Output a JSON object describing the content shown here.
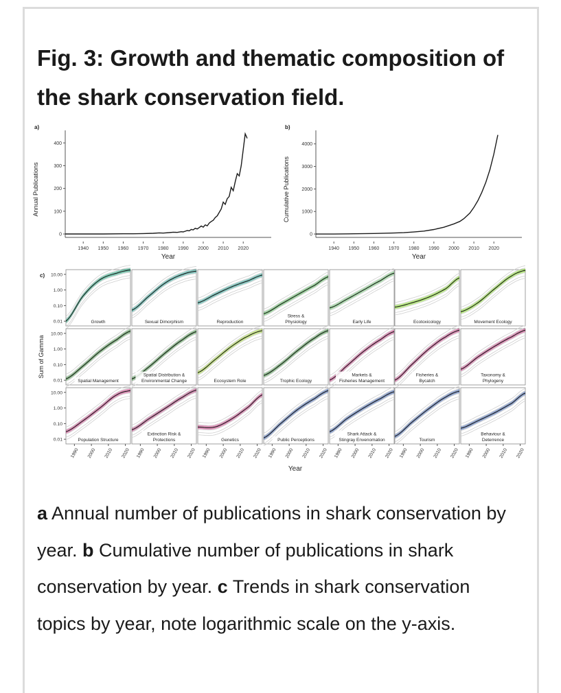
{
  "figure": {
    "title": "Fig. 3: Growth and thematic composition of the shark conservation field."
  },
  "caption": {
    "a_letter": "a",
    "a_text": " Annual number of publications in shark conservation by year. ",
    "b_letter": "b",
    "b_text": " Cumulative number of publications in shark conservation by year. ",
    "c_letter": "c",
    "c_text": " Trends in shark conservation topics by year, note logarithmic scale on the y-axis."
  },
  "chart_data": [
    {
      "type": "line",
      "panel_label": "a)",
      "xlabel": "Year",
      "ylabel": "Annual Publications",
      "xlim": [
        1931,
        2034
      ],
      "ylim": [
        -15,
        455
      ],
      "xticks": [
        1940,
        1950,
        1960,
        1970,
        1980,
        1990,
        2000,
        2010,
        2020
      ],
      "yticks": [
        0,
        100,
        200,
        300,
        400
      ],
      "grid": false,
      "color": "#1a1a1a",
      "series": [
        {
          "x": [
            1931,
            1940,
            1950,
            1960,
            1965,
            1970,
            1975,
            1978,
            1980,
            1983,
            1985,
            1987,
            1989,
            1990,
            1991,
            1992,
            1993,
            1994,
            1995,
            1996,
            1997,
            1998,
            1999,
            2000,
            2001,
            2002,
            2003,
            2004,
            2005,
            2006,
            2007,
            2008,
            2009,
            2010,
            2011,
            2012,
            2013,
            2014,
            2015,
            2016,
            2017,
            2018,
            2019,
            2020,
            2021,
            2022
          ],
          "y": [
            0,
            0,
            0,
            1,
            1,
            2,
            3,
            5,
            4,
            6,
            8,
            7,
            10,
            9,
            12,
            15,
            14,
            20,
            18,
            25,
            22,
            28,
            35,
            30,
            40,
            36,
            48,
            55,
            60,
            72,
            80,
            95,
            110,
            140,
            130,
            155,
            165,
            205,
            190,
            230,
            265,
            255,
            300,
            370,
            440,
            420
          ]
        }
      ]
    },
    {
      "type": "line",
      "panel_label": "b)",
      "xlabel": "Year",
      "ylabel": "Cumulative Publications",
      "xlim": [
        1931,
        2034
      ],
      "ylim": [
        -150,
        4600
      ],
      "xticks": [
        1940,
        1950,
        1960,
        1970,
        1980,
        1990,
        2000,
        2010,
        2020
      ],
      "yticks": [
        0,
        1000,
        2000,
        3000,
        4000
      ],
      "grid": false,
      "color": "#1a1a1a",
      "series": [
        {
          "x": [
            1931,
            1940,
            1950,
            1960,
            1970,
            1975,
            1980,
            1985,
            1990,
            1995,
            2000,
            2003,
            2005,
            2008,
            2010,
            2012,
            2014,
            2016,
            2018,
            2020,
            2022
          ],
          "y": [
            0,
            0,
            10,
            25,
            45,
            60,
            90,
            130,
            200,
            300,
            450,
            560,
            680,
            930,
            1180,
            1480,
            1850,
            2300,
            2850,
            3550,
            4400
          ]
        }
      ]
    },
    {
      "type": "line",
      "panel_label": "c)",
      "xlabel": "Year",
      "ylabel": "Sum of Gamma",
      "y_scale": "log",
      "ylim": [
        0.005,
        20
      ],
      "xlim": [
        1985,
        2023
      ],
      "yticks": [
        0.01,
        0.1,
        1.0,
        10.0
      ],
      "ytick_labels": [
        "0.01",
        "0.10",
        "1.00",
        "10.00"
      ],
      "xticks": [
        1990,
        2000,
        2010,
        2020
      ],
      "layout": "3x7 small multiples",
      "gray_background_trends": true,
      "panels": [
        {
          "name": "Growth",
          "color": "#1b9e77",
          "x": [
            1985,
            1995,
            2005,
            2015,
            2023
          ],
          "y": [
            0.01,
            0.4,
            4.5,
            12,
            19
          ]
        },
        {
          "name": "Sexual Dimorphism",
          "color": "#2a9d8f",
          "x": [
            1985,
            1995,
            2005,
            2015,
            2023
          ],
          "y": [
            0.05,
            0.4,
            3,
            10,
            16
          ]
        },
        {
          "name": "Reproduction",
          "color": "#2a9d8f",
          "x": [
            1985,
            1995,
            2005,
            2015,
            2023
          ],
          "y": [
            0.15,
            0.5,
            1.6,
            4,
            9
          ]
        },
        {
          "name": "Stress & Physiology",
          "color": "#4caf50",
          "x": [
            1985,
            1995,
            2005,
            2015,
            2023
          ],
          "y": [
            0.03,
            0.12,
            0.5,
            2,
            7
          ]
        },
        {
          "name": "Early Life",
          "color": "#66bb6a",
          "x": [
            1985,
            1995,
            2005,
            2015,
            2023
          ],
          "y": [
            0.07,
            0.25,
            1,
            4,
            12
          ]
        },
        {
          "name": "Ecotoxicology",
          "color": "#7ed321",
          "x": [
            1985,
            1995,
            2005,
            2015,
            2023
          ],
          "y": [
            0.08,
            0.15,
            0.35,
            1.2,
            6
          ]
        },
        {
          "name": "Movement Ecology",
          "color": "#7ed321",
          "x": [
            1985,
            1995,
            2005,
            2015,
            2023
          ],
          "y": [
            0.04,
            0.15,
            1.2,
            8,
            18
          ]
        },
        {
          "name": "Spatial Management",
          "color": "#3c8d3c",
          "x": [
            1985,
            1995,
            2005,
            2015,
            2023
          ],
          "y": [
            0.012,
            0.08,
            0.7,
            4,
            14
          ]
        },
        {
          "name": "Spatial Distribution & Environmental Change",
          "color": "#3c8d3c",
          "x": [
            1985,
            1995,
            2005,
            2015,
            2023
          ],
          "y": [
            0.012,
            0.07,
            0.6,
            4,
            13
          ]
        },
        {
          "name": "Ecosystem Role",
          "color": "#9acd32",
          "x": [
            1985,
            1995,
            2005,
            2015,
            2023
          ],
          "y": [
            0.03,
            0.2,
            1.5,
            7,
            15
          ]
        },
        {
          "name": "Trophic Ecology",
          "color": "#3c8d3c",
          "x": [
            1985,
            1995,
            2005,
            2015,
            2023
          ],
          "y": [
            0.02,
            0.1,
            0.8,
            5,
            15
          ]
        },
        {
          "name": "Markets & Fisheries Management",
          "color": "#c0397d",
          "x": [
            1985,
            1995,
            2005,
            2015,
            2023
          ],
          "y": [
            0.01,
            0.08,
            0.7,
            4,
            13
          ]
        },
        {
          "name": "Fisheries & Bycatch",
          "color": "#c0397d",
          "x": [
            1985,
            1995,
            2005,
            2015,
            2023
          ],
          "y": [
            0.01,
            0.1,
            1,
            6,
            16
          ]
        },
        {
          "name": "Taxonomy & Phylogeny",
          "color": "#c0397d",
          "x": [
            1985,
            1995,
            2005,
            2015,
            2023
          ],
          "y": [
            0.05,
            0.3,
            1.5,
            6,
            16
          ]
        },
        {
          "name": "Population Structure",
          "color": "#c0397d",
          "x": [
            1985,
            1995,
            2005,
            2015,
            2023
          ],
          "y": [
            0.03,
            0.15,
            1,
            7,
            13
          ]
        },
        {
          "name": "Extinction Risk & Protections",
          "color": "#b03a7a",
          "x": [
            1985,
            1995,
            2005,
            2015,
            2023
          ],
          "y": [
            0.04,
            0.2,
            1,
            5,
            14
          ]
        },
        {
          "name": "Genetics",
          "color": "#c0397d",
          "x": [
            1985,
            1995,
            2005,
            2015,
            2023
          ],
          "y": [
            0.06,
            0.06,
            0.2,
            1.2,
            7
          ]
        },
        {
          "name": "Public Perceptions",
          "color": "#3a5fa8",
          "x": [
            1985,
            1995,
            2005,
            2015,
            2023
          ],
          "y": [
            0.012,
            0.1,
            0.8,
            4,
            13
          ]
        },
        {
          "name": "Shark Attack & Stingray Envenomation",
          "color": "#3a5fa8",
          "x": [
            1985,
            1995,
            2005,
            2015,
            2023
          ],
          "y": [
            0.03,
            0.2,
            1,
            4,
            11
          ]
        },
        {
          "name": "Tourism",
          "color": "#3a5fa8",
          "x": [
            1985,
            1995,
            2005,
            2015,
            2023
          ],
          "y": [
            0.015,
            0.12,
            0.9,
            5,
            12
          ]
        },
        {
          "name": "Behaviour & Deterrence",
          "color": "#3a5fa8",
          "x": [
            1985,
            1995,
            2005,
            2015,
            2023
          ],
          "y": [
            0.05,
            0.15,
            0.5,
            2,
            9
          ]
        }
      ]
    }
  ]
}
